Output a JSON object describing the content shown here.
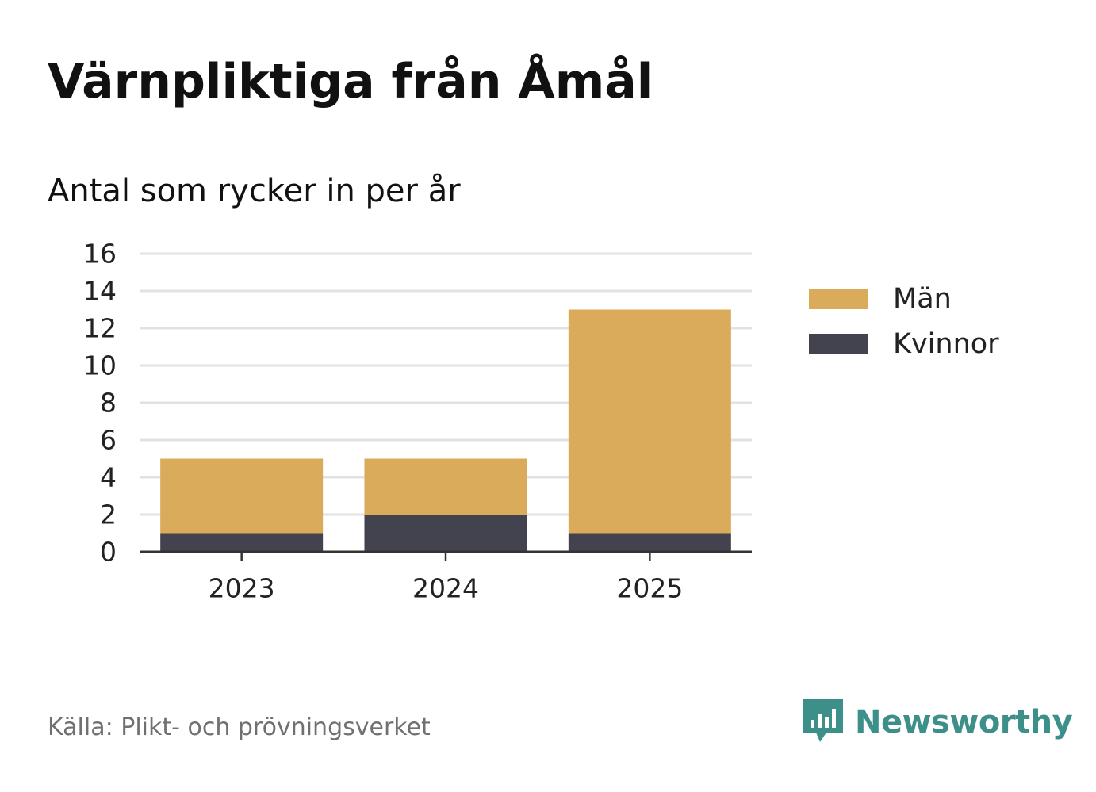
{
  "header": {
    "title": "Värnpliktiga från Åmål",
    "subtitle": "Antal som rycker in per år"
  },
  "footer": {
    "source": "Källa: Plikt- och prövningsverket",
    "brand": "Newsworthy"
  },
  "colors": {
    "men": "#d9ab5a",
    "women": "#43424f",
    "grid": "#e2e2e2",
    "axis": "#333333",
    "brand": "#3d8f89"
  },
  "icons": {
    "logo": "newsworthy-logo-icon"
  },
  "chart_data": {
    "type": "bar",
    "stacked": true,
    "title": "Värnpliktiga från Åmål",
    "subtitle": "Antal som rycker in per år",
    "categories": [
      "2023",
      "2024",
      "2025"
    ],
    "series": [
      {
        "name": "Kvinnor",
        "values": [
          1,
          2,
          1
        ]
      },
      {
        "name": "Män",
        "values": [
          4,
          3,
          12
        ]
      }
    ],
    "yticks": [
      0,
      2,
      4,
      6,
      8,
      10,
      12,
      14,
      16
    ],
    "ylim": [
      0,
      16
    ],
    "xlabel": "",
    "ylabel": "",
    "grid": true,
    "legend": {
      "position": "right",
      "order": [
        "Män",
        "Kvinnor"
      ]
    }
  }
}
